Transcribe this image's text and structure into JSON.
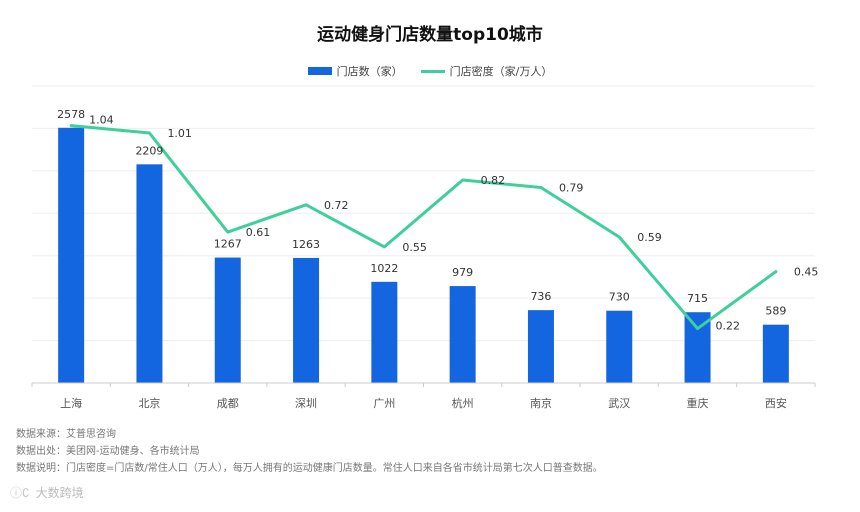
{
  "chart_data": {
    "type": "bar",
    "title": "运动健身门店数量top10城市",
    "categories": [
      "上海",
      "北京",
      "成都",
      "深圳",
      "广州",
      "杭州",
      "南京",
      "武汉",
      "重庆",
      "西安"
    ],
    "series": [
      {
        "name": "门店数（家）",
        "type": "bar",
        "values": [
          2578,
          2209,
          1267,
          1263,
          1022,
          979,
          736,
          730,
          715,
          589
        ],
        "color": "#1466e0"
      },
      {
        "name": "门店密度（家/万人）",
        "type": "line",
        "values": [
          1.04,
          1.01,
          0.61,
          0.72,
          0.55,
          0.82,
          0.79,
          0.59,
          0.22,
          0.45
        ],
        "color": "#3fcf9b"
      }
    ],
    "bar_ylim": [
      0,
      3000
    ],
    "line_ylim": [
      0,
      1.2
    ],
    "grid": true,
    "legend_position": "top-center"
  },
  "notes": {
    "source": "数据来源：艾普思咨询",
    "origin": "数据出处：美团网-运动健身、各市统计局",
    "explain": "数据说明：门店密度=门店数/常住人口（万人），每万人拥有的运动健康门店数量。常住人口来自各省市统计局第七次人口普查数据。"
  },
  "watermark": {
    "icon": "ics-logo-icon",
    "text": "大数跨境"
  }
}
